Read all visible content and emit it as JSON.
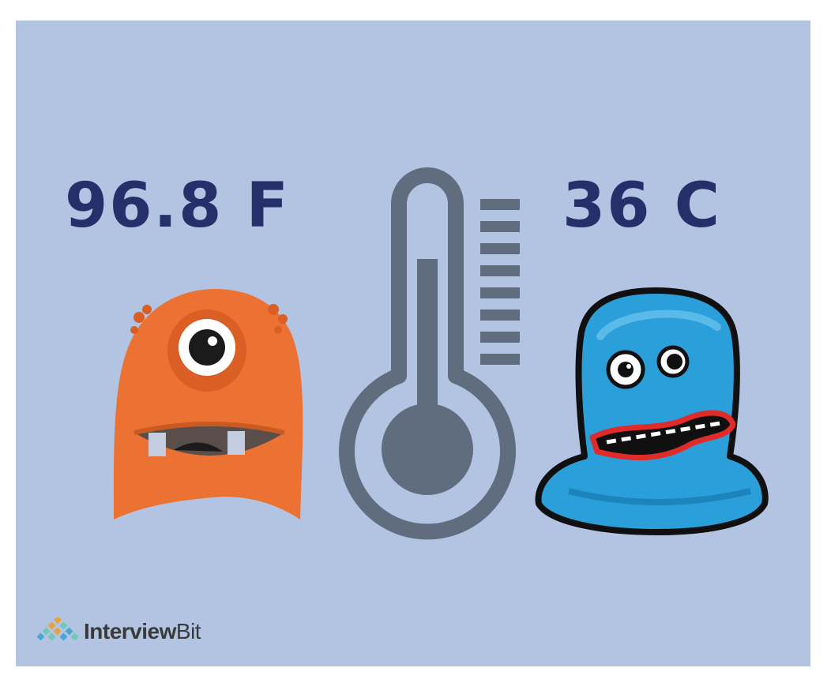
{
  "fahrenheit_label": "96.8 F",
  "celsius_label": "36 C",
  "brand": {
    "name_bold": "Interview",
    "name_light": "Bit"
  },
  "colors": {
    "background": "#b3c4e2",
    "text": "#25306a",
    "thermometer": "#5f6d7f",
    "orange_monster": "#ec7233",
    "blue_monster": "#2b9fda"
  }
}
